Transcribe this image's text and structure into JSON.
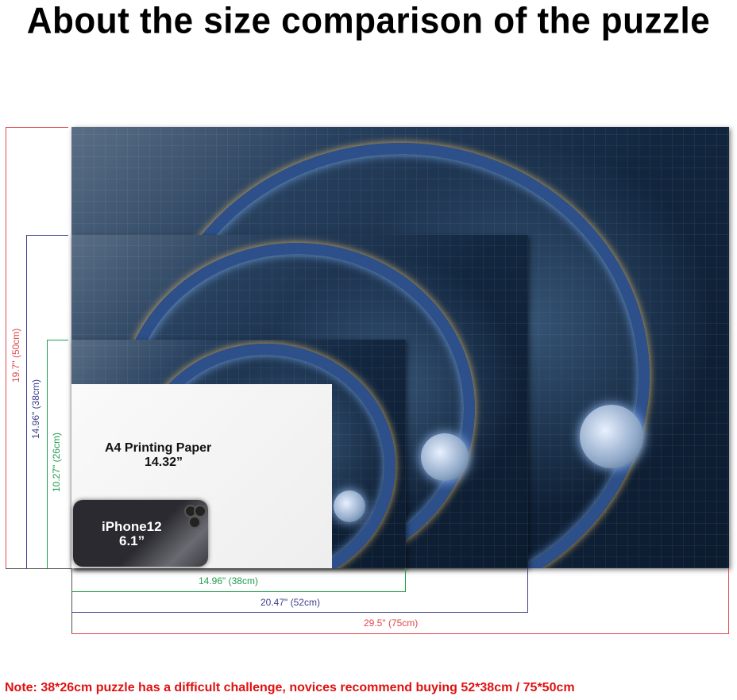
{
  "title": "About the size comparison of the puzzle",
  "paper": {
    "label": "A4 Printing Paper",
    "size": "14.32”"
  },
  "phone": {
    "label": "iPhone12",
    "size": "6.1”"
  },
  "heights": {
    "large": "19.7\" (50cm)",
    "medium": "14.96\" (38cm)",
    "small": "10.27\" (26cm)"
  },
  "widths": {
    "small": "14.96\" (38cm)",
    "medium": "20.47\" (52cm)",
    "large": "29.5\" (75cm)"
  },
  "colors": {
    "large": "#e0474c",
    "medium": "#3b3f8c",
    "small": "#1e9e4a",
    "note": "#e01010"
  },
  "note": "Note:  38*26cm puzzle has a difficult challenge, novices recommend buying 52*38cm / 75*50cm"
}
